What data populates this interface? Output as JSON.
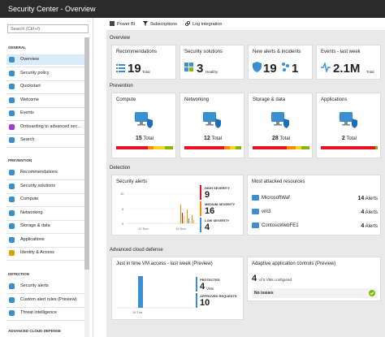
{
  "app_title": "Security Center - Overview",
  "search_placeholder": "Search (Ctrl+/)",
  "sidebar": {
    "general_header": "GENERAL",
    "prevention_header": "PREVENTION",
    "detection_header": "DETECTION",
    "advanced_header": "ADVANCED CLOUD DEFENSE",
    "general": [
      {
        "label": "Overview",
        "icon": "overview-icon",
        "color": "#3a8fd1"
      },
      {
        "label": "Security policy",
        "icon": "policy-icon",
        "color": "#3a8fd1"
      },
      {
        "label": "Quickstart",
        "icon": "quickstart-icon",
        "color": "#3a8fd1"
      },
      {
        "label": "Welcome",
        "icon": "welcome-icon",
        "color": "#3a8fd1"
      },
      {
        "label": "Events",
        "icon": "events-icon",
        "color": "#3a8fd1"
      },
      {
        "label": "Onboarding to advanced sec...",
        "icon": "rocket-icon",
        "color": "#a03ad1"
      },
      {
        "label": "Search",
        "icon": "search-icon",
        "color": "#3a8fd1"
      }
    ],
    "prevention": [
      {
        "label": "Recommendations",
        "icon": "recommendations-icon",
        "color": "#3a8fd1"
      },
      {
        "label": "Security solutions",
        "icon": "solutions-icon",
        "color": "#3a8fd1"
      },
      {
        "label": "Compute",
        "icon": "compute-icon",
        "color": "#3a8fd1"
      },
      {
        "label": "Networking",
        "icon": "networking-icon",
        "color": "#3a8fd1"
      },
      {
        "label": "Storage & data",
        "icon": "storage-icon",
        "color": "#3a8fd1"
      },
      {
        "label": "Applications",
        "icon": "applications-icon",
        "color": "#3a8fd1"
      },
      {
        "label": "Identity & Access",
        "icon": "identity-icon",
        "color": "#d8a300"
      }
    ],
    "detection": [
      {
        "label": "Security alerts",
        "icon": "alerts-icon",
        "color": "#3a8fd1"
      },
      {
        "label": "Custom alert rules (Preview)",
        "icon": "custom-rules-icon",
        "color": "#3a8fd1"
      },
      {
        "label": "Threat intelligence",
        "icon": "threat-icon",
        "color": "#3a8fd1"
      }
    ]
  },
  "toolbar": {
    "power_bi": "Power BI",
    "subscriptions": "Subscriptions",
    "log_integration": "Log integration"
  },
  "sections": {
    "overview": "Overview",
    "prevention": "Prevention",
    "detection": "Detection",
    "advanced": "Advanced cloud defense"
  },
  "overview_tiles": {
    "recommendations": {
      "title": "Recommendations",
      "value": "19",
      "unit": "Total"
    },
    "solutions": {
      "title": "Security solutions",
      "value": "3",
      "unit": "Healthy"
    },
    "alerts": {
      "title": "New alerts & incidents",
      "value1": "19",
      "value2": "1"
    },
    "events": {
      "title": "Events - last week",
      "value": "2.1M",
      "unit": "Total"
    }
  },
  "prevention_tiles": [
    {
      "title": "Compute",
      "value": "15",
      "unit": "Total"
    },
    {
      "title": "Networking",
      "value": "12",
      "unit": "Total"
    },
    {
      "title": "Storage & data",
      "value": "28",
      "unit": "Total"
    },
    {
      "title": "Applications",
      "value": "2",
      "unit": "Total"
    }
  ],
  "security_alerts": {
    "title": "Security alerts",
    "y_ticks": [
      "10",
      "5",
      "0"
    ],
    "x_ticks": [
      "12 Sun",
      "19 Sun"
    ],
    "high_label": "HIGH SEVERITY",
    "high_value": "9",
    "medium_label": "MEDIUM SEVERITY",
    "medium_value": "16",
    "low_label": "LOW SEVERITY",
    "low_value": "4"
  },
  "attacked": {
    "title": "Most attacked resources",
    "items": [
      {
        "name": "MicrosoftWaf",
        "count": "14",
        "unit": "Alerts"
      },
      {
        "name": "vm3",
        "count": "4",
        "unit": "Alerts"
      },
      {
        "name": "ContosoWebFE1",
        "count": "4",
        "unit": "Alerts"
      }
    ]
  },
  "jit": {
    "title": "Just in time VM access - last week (Preview)",
    "x_tick": "19 Tue",
    "protected_label": "PROTECTED",
    "protected_value": "4",
    "protected_unit": "VMs",
    "approved_label": "APPROVED REQUESTS",
    "approved_value": "10"
  },
  "aac": {
    "title": "Adaptive application controls (Preview)",
    "count": "4",
    "of_text": "of 5 VMs configured",
    "status": "No issues"
  },
  "colors": {
    "accent": "#0072c6",
    "red": "#e81123",
    "orange": "#ff8c00",
    "yellow": "#fcd116",
    "green": "#7fba00",
    "blue": "#3a8fd1"
  }
}
